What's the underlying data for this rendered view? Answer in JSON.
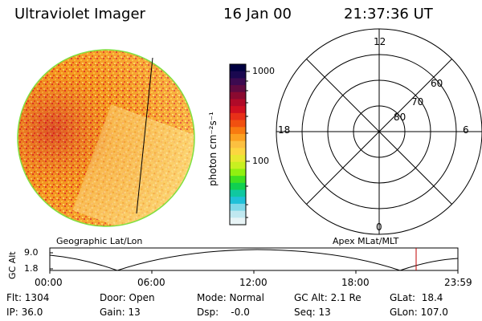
{
  "header": {
    "instrument": "Ultraviolet Imager",
    "date": "16 Jan 00",
    "time": "21:37:36 UT"
  },
  "image_panel": {
    "caption": "Geographic Lat/Lon"
  },
  "colorbar": {
    "unit_label": "photon cm⁻²s⁻¹",
    "tick_labels": [
      "1000",
      "100"
    ],
    "colors": [
      "#000040",
      "#1a0850",
      "#3c0a50",
      "#600a40",
      "#8a0a30",
      "#b00a28",
      "#d01020",
      "#e83018",
      "#f05010",
      "#f87a10",
      "#fca020",
      "#fcc040",
      "#fcd640",
      "#e8e830",
      "#c8f020",
      "#90f010",
      "#40e020",
      "#10d050",
      "#10c8a0",
      "#20c0d8",
      "#80d8e8",
      "#c0e8f0",
      "#e8f4f6"
    ]
  },
  "polar_plot": {
    "caption": "Apex MLat/MLT",
    "mlt_labels": {
      "top": "12",
      "right": "6",
      "bottom": "0",
      "left": "18"
    },
    "lat_labels": [
      "60",
      "70",
      "80"
    ]
  },
  "gc_alt_plot": {
    "ylabel": "GC Alt",
    "ytick_labels": [
      "9.0",
      "1.8"
    ],
    "xtick_labels": [
      "00:00",
      "06:00",
      "12:00",
      "18:00",
      "23:59"
    ],
    "current_marker_time": "21:37",
    "colors": {
      "trace": "#000000",
      "marker": "#c00000"
    }
  },
  "status": {
    "flt": "Flt: 1304",
    "ip": "IP: 36.0",
    "door": "Door: Open",
    "gain": "Gain: 13",
    "mode": "Mode: Normal",
    "dsp": "Dsp:    -0.0",
    "gc_alt": "GC Alt: 2.1 Re",
    "seq": "Seq: 13",
    "glat": "GLat:  18.4",
    "glon": "GLon: 107.0"
  }
}
